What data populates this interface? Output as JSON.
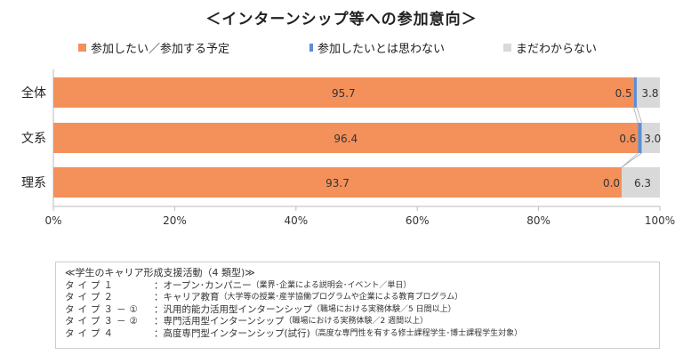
{
  "chart_data": {
    "type": "bar",
    "orientation": "horizontal-stacked-100",
    "title": "＜インターンシップ等への参加意向＞",
    "categories": [
      "全体",
      "文系",
      "理系"
    ],
    "series": [
      {
        "name": "参加したい／参加する予定",
        "color": "#F4905A",
        "values": [
          95.7,
          96.4,
          93.7
        ]
      },
      {
        "name": "参加したいとは思わない",
        "color": "#5B8FD6",
        "values": [
          0.5,
          0.6,
          0.0
        ]
      },
      {
        "name": "まだわからない",
        "color": "#D9D9D9",
        "values": [
          3.8,
          3.0,
          6.3
        ]
      }
    ],
    "xlim": [
      0,
      100
    ],
    "xticks": [
      "0%",
      "20%",
      "40%",
      "60%",
      "80%",
      "100%"
    ],
    "legend_position": "top"
  },
  "notes": {
    "heading": "≪学生のキャリア形成支援活動（4 類型)≫",
    "rows": [
      {
        "key": "タイプ１",
        "main": "：オープン･カンパニー",
        "sub": "（業界･企業による説明会･イベント／単日）"
      },
      {
        "key": "タイプ２",
        "main": "：キャリア教育",
        "sub": "（大学等の授業･産学協働プログラムや企業による教育プログラム）"
      },
      {
        "key": "タイプ３－①",
        "main": "：汎用的能力活用型インターンシップ",
        "sub": "（職場における実務体験／5 日間以上）"
      },
      {
        "key": "タイプ３－②",
        "main": "：専門活用型インターンシップ",
        "sub": "（職場における実務体験／2 週間以上）"
      },
      {
        "key": "タイプ４",
        "main": "：高度専門型インターンシップ(試行)",
        "sub": "（高度な専門性を有する修士課程学生･博士課程学生対象）"
      }
    ]
  }
}
